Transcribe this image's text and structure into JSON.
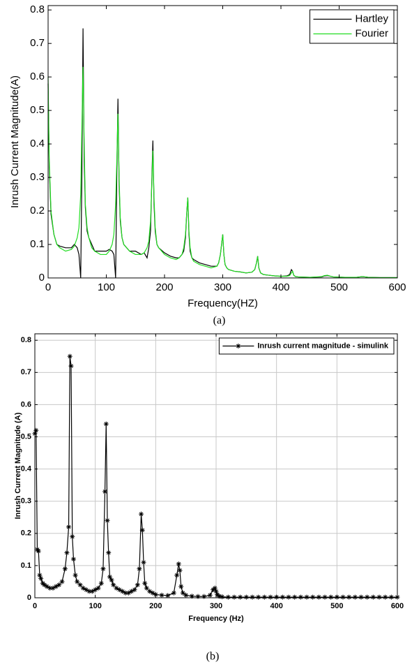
{
  "chart_data": [
    {
      "type": "line",
      "xlabel": "Frequency(HZ)",
      "ylabel": "Inrush Current Magnitude(A)",
      "caption": "(a)",
      "xlim": [
        0,
        600
      ],
      "ylim": [
        0,
        0.813
      ],
      "xticks": [
        0,
        100,
        200,
        300,
        400,
        500,
        600
      ],
      "yticks": [
        0,
        0.1,
        0.2,
        0.3,
        0.4,
        0.5,
        0.6,
        0.7,
        0.8
      ],
      "grid": false,
      "legend": "upper right",
      "x": [
        0,
        2,
        5,
        10,
        15,
        20,
        30,
        40,
        45,
        50,
        53,
        56,
        58,
        60,
        62,
        64,
        67,
        70,
        75,
        80,
        90,
        100,
        105,
        110,
        113,
        116,
        118,
        120,
        122,
        124,
        127,
        130,
        140,
        150,
        160,
        165,
        170,
        173,
        176,
        178,
        180,
        182,
        184,
        187,
        190,
        200,
        210,
        220,
        225,
        230,
        233,
        236,
        238,
        240,
        242,
        244,
        247,
        250,
        260,
        270,
        280,
        290,
        293,
        296,
        298,
        300,
        302,
        304,
        307,
        310,
        320,
        330,
        340,
        350,
        355,
        358,
        360,
        362,
        365,
        370,
        380,
        390,
        400,
        410,
        415,
        418,
        420,
        422,
        425,
        430,
        450,
        470,
        475,
        480,
        485,
        490,
        510,
        530,
        540,
        550,
        570,
        600
      ],
      "series": [
        {
          "name": "Hartley",
          "color": "#000000",
          "values": [
            0.58,
            0.33,
            0.19,
            0.13,
            0.1,
            0.095,
            0.09,
            0.09,
            0.1,
            0.09,
            0.07,
            0.0,
            0.3,
            0.745,
            0.35,
            0.21,
            0.14,
            0.12,
            0.1,
            0.08,
            0.08,
            0.08,
            0.085,
            0.08,
            0.07,
            0.0,
            0.3,
            0.535,
            0.28,
            0.17,
            0.12,
            0.1,
            0.08,
            0.08,
            0.07,
            0.075,
            0.06,
            0.09,
            0.14,
            0.28,
            0.41,
            0.22,
            0.14,
            0.1,
            0.09,
            0.075,
            0.065,
            0.06,
            0.06,
            0.07,
            0.08,
            0.12,
            0.19,
            0.24,
            0.13,
            0.08,
            0.06,
            0.055,
            0.045,
            0.04,
            0.035,
            0.035,
            0.045,
            0.07,
            0.1,
            0.13,
            0.07,
            0.04,
            0.03,
            0.025,
            0.02,
            0.018,
            0.015,
            0.017,
            0.025,
            0.045,
            0.065,
            0.03,
            0.015,
            0.01,
            0.008,
            0.006,
            0.005,
            0.006,
            0.01,
            0.025,
            0.02,
            0.008,
            0.004,
            0.003,
            0.002,
            0.003,
            0.006,
            0.007,
            0.005,
            0.003,
            0.002,
            0.002,
            0.004,
            0.002,
            0.001,
            0.001
          ]
        },
        {
          "name": "Fourier",
          "color": "#22dd22",
          "values": [
            0.6,
            0.35,
            0.2,
            0.13,
            0.1,
            0.09,
            0.08,
            0.085,
            0.095,
            0.12,
            0.15,
            0.25,
            0.45,
            0.63,
            0.4,
            0.22,
            0.15,
            0.12,
            0.09,
            0.08,
            0.07,
            0.07,
            0.08,
            0.1,
            0.13,
            0.22,
            0.35,
            0.49,
            0.3,
            0.18,
            0.12,
            0.1,
            0.08,
            0.07,
            0.07,
            0.075,
            0.09,
            0.11,
            0.17,
            0.27,
            0.38,
            0.24,
            0.15,
            0.1,
            0.09,
            0.07,
            0.06,
            0.055,
            0.06,
            0.07,
            0.09,
            0.13,
            0.19,
            0.24,
            0.14,
            0.09,
            0.06,
            0.05,
            0.04,
            0.035,
            0.03,
            0.035,
            0.045,
            0.07,
            0.1,
            0.13,
            0.07,
            0.04,
            0.03,
            0.025,
            0.02,
            0.018,
            0.015,
            0.017,
            0.025,
            0.045,
            0.065,
            0.03,
            0.015,
            0.01,
            0.008,
            0.006,
            0.005,
            0.005,
            0.007,
            0.015,
            0.02,
            0.008,
            0.004,
            0.003,
            0.002,
            0.004,
            0.007,
            0.008,
            0.005,
            0.003,
            0.002,
            0.002,
            0.004,
            0.002,
            0.001,
            0.001
          ]
        }
      ]
    },
    {
      "type": "line",
      "xlabel": "Frequency (Hz)",
      "ylabel": "Inrush Current Magnitude (A)",
      "caption": "(b)",
      "xlim": [
        0,
        600
      ],
      "ylim": [
        0,
        0.82
      ],
      "xticks": [
        0,
        100,
        200,
        300,
        400,
        500,
        600
      ],
      "yticks": [
        0,
        0.1,
        0.2,
        0.3,
        0.4,
        0.5,
        0.6,
        0.7,
        0.8
      ],
      "grid": true,
      "legend": "upper right",
      "x": [
        0,
        2,
        4,
        6,
        8,
        10,
        13,
        16,
        20,
        25,
        30,
        35,
        40,
        45,
        50,
        53,
        56,
        58,
        60,
        62,
        64,
        67,
        70,
        75,
        80,
        85,
        90,
        95,
        100,
        105,
        110,
        113,
        116,
        118,
        120,
        122,
        124,
        127,
        130,
        135,
        140,
        145,
        150,
        155,
        160,
        165,
        170,
        173,
        176,
        178,
        180,
        182,
        185,
        190,
        195,
        200,
        210,
        220,
        230,
        235,
        238,
        240,
        242,
        245,
        250,
        260,
        270,
        280,
        290,
        295,
        298,
        300,
        302,
        305,
        310,
        320,
        330,
        340,
        350,
        360,
        370,
        380,
        390,
        400,
        410,
        420,
        430,
        440,
        450,
        460,
        470,
        480,
        490,
        500,
        510,
        520,
        530,
        540,
        550,
        560,
        570,
        580,
        590,
        600
      ],
      "series": [
        {
          "name": "Inrush current magnitude - simulink",
          "color": "#000000",
          "marker": "asterisk",
          "values": [
            0.51,
            0.52,
            0.15,
            0.145,
            0.07,
            0.06,
            0.045,
            0.04,
            0.035,
            0.03,
            0.03,
            0.035,
            0.04,
            0.05,
            0.09,
            0.14,
            0.22,
            0.75,
            0.72,
            0.19,
            0.12,
            0.07,
            0.05,
            0.04,
            0.03,
            0.025,
            0.02,
            0.02,
            0.025,
            0.03,
            0.045,
            0.09,
            0.33,
            0.54,
            0.24,
            0.14,
            0.065,
            0.055,
            0.04,
            0.03,
            0.025,
            0.02,
            0.015,
            0.015,
            0.02,
            0.025,
            0.04,
            0.09,
            0.26,
            0.21,
            0.11,
            0.045,
            0.03,
            0.02,
            0.015,
            0.01,
            0.008,
            0.007,
            0.015,
            0.07,
            0.105,
            0.085,
            0.035,
            0.015,
            0.008,
            0.005,
            0.004,
            0.004,
            0.008,
            0.025,
            0.03,
            0.02,
            0.01,
            0.005,
            0.003,
            0.002,
            0.002,
            0.002,
            0.002,
            0.002,
            0.002,
            0.002,
            0.002,
            0.002,
            0.002,
            0.002,
            0.002,
            0.002,
            0.002,
            0.002,
            0.002,
            0.002,
            0.002,
            0.002,
            0.002,
            0.002,
            0.002,
            0.002,
            0.002,
            0.002,
            0.002,
            0.002,
            0.002,
            0.002
          ]
        }
      ]
    }
  ]
}
